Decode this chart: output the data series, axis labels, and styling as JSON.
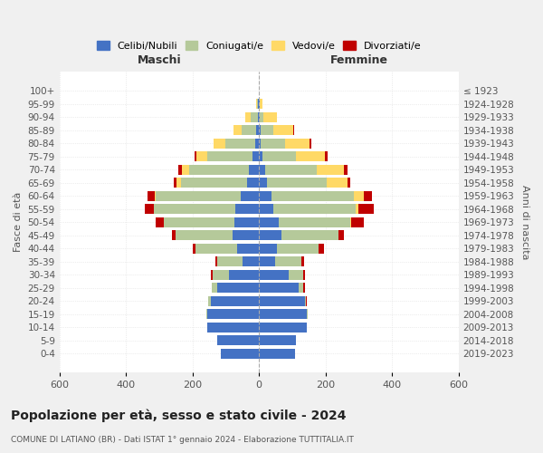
{
  "age_groups": [
    "100+",
    "95-99",
    "90-94",
    "85-89",
    "80-84",
    "75-79",
    "70-74",
    "65-69",
    "60-64",
    "55-59",
    "50-54",
    "45-49",
    "40-44",
    "35-39",
    "30-34",
    "25-29",
    "20-24",
    "15-19",
    "10-14",
    "5-9",
    "0-4"
  ],
  "birth_years": [
    "≤ 1923",
    "1924-1928",
    "1929-1933",
    "1934-1938",
    "1939-1943",
    "1944-1948",
    "1949-1953",
    "1954-1958",
    "1959-1963",
    "1964-1968",
    "1969-1973",
    "1974-1978",
    "1979-1983",
    "1984-1988",
    "1989-1993",
    "1994-1998",
    "1999-2003",
    "2004-2008",
    "2009-2013",
    "2014-2018",
    "2019-2023"
  ],
  "maschi_celibe": [
    0,
    2,
    4,
    8,
    12,
    20,
    30,
    35,
    55,
    70,
    75,
    80,
    65,
    50,
    90,
    125,
    145,
    155,
    155,
    125,
    115
  ],
  "maschi_coniugato": [
    0,
    3,
    20,
    45,
    90,
    135,
    180,
    200,
    255,
    245,
    210,
    170,
    125,
    75,
    50,
    18,
    8,
    4,
    0,
    0,
    0
  ],
  "maschi_vedovo": [
    0,
    3,
    18,
    25,
    35,
    32,
    22,
    12,
    4,
    2,
    2,
    1,
    0,
    0,
    0,
    0,
    0,
    0,
    0,
    0,
    0
  ],
  "maschi_divorziato": [
    0,
    0,
    0,
    0,
    0,
    7,
    10,
    8,
    22,
    25,
    25,
    12,
    8,
    5,
    4,
    0,
    0,
    0,
    0,
    0,
    0
  ],
  "femmine_celibe": [
    0,
    1,
    3,
    4,
    6,
    10,
    18,
    25,
    38,
    42,
    58,
    68,
    55,
    48,
    88,
    120,
    138,
    145,
    143,
    112,
    108
  ],
  "femmine_coniugato": [
    0,
    2,
    10,
    38,
    72,
    100,
    155,
    178,
    248,
    248,
    215,
    170,
    125,
    80,
    46,
    14,
    4,
    2,
    0,
    0,
    0
  ],
  "femmine_vedovo": [
    0,
    8,
    40,
    60,
    75,
    88,
    82,
    62,
    28,
    9,
    4,
    2,
    0,
    0,
    0,
    0,
    0,
    0,
    0,
    0,
    0
  ],
  "femmine_divorziato": [
    0,
    0,
    2,
    4,
    4,
    7,
    10,
    10,
    25,
    45,
    38,
    16,
    16,
    8,
    4,
    4,
    2,
    0,
    0,
    0,
    0
  ],
  "colors": {
    "celibe": "#4472C4",
    "coniugato": "#B5C99A",
    "vedovo": "#FFD966",
    "divorziato": "#C00000"
  },
  "legend_labels": [
    "Celibi/Nubili",
    "Coniugati/e",
    "Vedovi/e",
    "Divorziati/e"
  ],
  "maschi_label": "Maschi",
  "femmine_label": "Femmine",
  "ylabel_left": "Fasce di età",
  "ylabel_right": "Anni di nascita",
  "xlim": 600,
  "title": "Popolazione per età, sesso e stato civile - 2024",
  "subtitle": "COMUNE DI LATIANO (BR) - Dati ISTAT 1° gennaio 2024 - Elaborazione TUTTITALIA.IT",
  "bg_color": "#f0f0f0",
  "plot_bg_color": "#ffffff"
}
